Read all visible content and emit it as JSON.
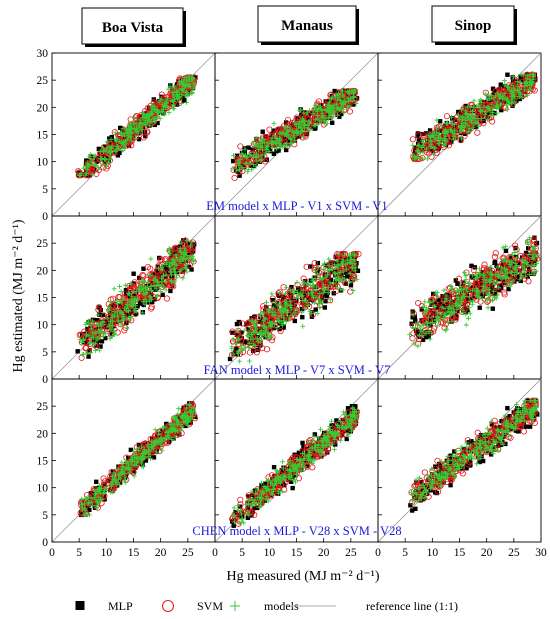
{
  "chart_data": {
    "type": "scatter",
    "layout": "3x3 grid of panels, shared axes",
    "columns": [
      "Boa Vista",
      "Manaus",
      "Sinop"
    ],
    "row_annotations": [
      "EM model  x  MLP - V1  x  SVM - V1",
      "FAN model  x  MLP - V7  x  SVM - V7",
      "CHEN model  x  MLP - V28  x  SVM - V28"
    ],
    "xlabel": "Hg measured (MJ m⁻² d⁻¹)",
    "ylabel": "Hg estimated (MJ m⁻² d⁻¹)",
    "xlim": [
      0,
      30
    ],
    "ylim": [
      0,
      30
    ],
    "x_ticks": [
      "0",
      "5",
      "10",
      "15",
      "20",
      "25",
      "30"
    ],
    "y_ticks": [
      "0",
      "5",
      "10",
      "15",
      "20",
      "25",
      "30"
    ],
    "legend": [
      {
        "name": "MLP",
        "marker": "filled-square",
        "color": "#000000"
      },
      {
        "name": "SVM",
        "marker": "open-circle",
        "color": "#e31a1c"
      },
      {
        "name": "models",
        "marker": "plus",
        "color": "#33cc33"
      },
      {
        "name": "reference line (1:1)",
        "marker": "line",
        "color": "#aaaaaa"
      }
    ],
    "reference_line": {
      "x": [
        0,
        30
      ],
      "y": [
        0,
        30
      ]
    },
    "panels": [
      {
        "row": 0,
        "col": 0,
        "x_range": [
          5,
          26
        ],
        "y_center": {
          "slope": 0.85,
          "intercept": 3.0
        },
        "spread": 1.6,
        "y_clip": [
          7.5,
          25.5
        ]
      },
      {
        "row": 0,
        "col": 1,
        "x_range": [
          3,
          26
        ],
        "y_center": {
          "slope": 0.62,
          "intercept": 6.8
        },
        "spread": 1.8,
        "y_clip": [
          7.0,
          23.0
        ]
      },
      {
        "row": 0,
        "col": 2,
        "x_range": [
          6,
          29
        ],
        "y_center": {
          "slope": 0.62,
          "intercept": 7.5
        },
        "spread": 1.9,
        "y_clip": [
          10.5,
          26.0
        ]
      },
      {
        "row": 1,
        "col": 0,
        "x_range": [
          5,
          26
        ],
        "y_center": {
          "slope": 0.85,
          "intercept": 1.8
        },
        "spread": 2.6,
        "y_clip": [
          3.0,
          25.5
        ]
      },
      {
        "row": 1,
        "col": 1,
        "x_range": [
          3,
          26
        ],
        "y_center": {
          "slope": 0.72,
          "intercept": 3.5
        },
        "spread": 2.8,
        "y_clip": [
          2.5,
          23.0
        ]
      },
      {
        "row": 1,
        "col": 2,
        "x_range": [
          6,
          29
        ],
        "y_center": {
          "slope": 0.6,
          "intercept": 5.5
        },
        "spread": 2.6,
        "y_clip": [
          5.0,
          26.0
        ]
      },
      {
        "row": 2,
        "col": 0,
        "x_range": [
          5,
          26
        ],
        "y_center": {
          "slope": 0.9,
          "intercept": 1.0
        },
        "spread": 1.4,
        "y_clip": [
          5.0,
          25.5
        ]
      },
      {
        "row": 2,
        "col": 1,
        "x_range": [
          3,
          26
        ],
        "y_center": {
          "slope": 0.85,
          "intercept": 1.3
        },
        "spread": 1.6,
        "y_clip": [
          3.0,
          25.0
        ]
      },
      {
        "row": 2,
        "col": 2,
        "x_range": [
          6,
          29
        ],
        "y_center": {
          "slope": 0.72,
          "intercept": 4.0
        },
        "spread": 1.8,
        "y_clip": [
          5.0,
          26.0
        ]
      }
    ],
    "points_per_panel": 260,
    "grid": false
  }
}
